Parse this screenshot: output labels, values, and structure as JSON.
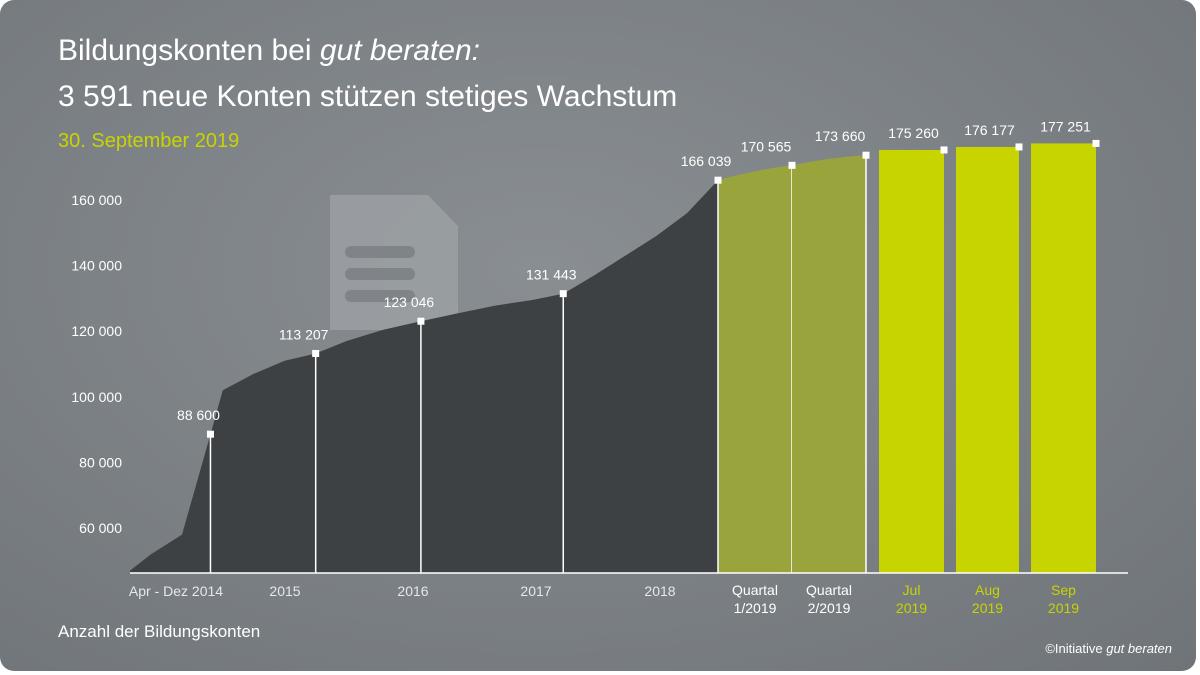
{
  "title_line1_prefix": "Bildungskonten bei ",
  "title_line1_italic": "gut beraten:",
  "title_line2": "3 591 neue Konten stützen stetiges Wachstum",
  "subtitle_date": "30. September 2019",
  "caption": "Anzahl der Bildungskonten",
  "copyright_prefix": "©Initiative ",
  "copyright_italic": "gut beraten",
  "colors": {
    "background": "#7b8084",
    "area": "#3e4143",
    "quarter_bars": "#9aa43c",
    "month_bars": "#c8d400",
    "highlight_text": "#c8d400"
  },
  "chart_data": {
    "type": "area",
    "title": "Bildungskonten bei gut beraten: 3 591 neue Konten stützen stetiges Wachstum",
    "subtitle": "30. September 2019",
    "ylabel": "Anzahl der Bildungskonten",
    "yticks": [
      "60 000",
      "80 000",
      "100 000",
      "120 000",
      "140 000",
      "160 000"
    ],
    "ytick_values": [
      60000,
      80000,
      100000,
      120000,
      140000,
      160000
    ],
    "ylim": [
      47000,
      185000
    ],
    "grid": false,
    "xticks": [
      "Apr - Dez 2014",
      "2015",
      "2016",
      "2017",
      "2018"
    ],
    "area_series": {
      "x_years": [
        2014.25,
        2014.42,
        2014.67,
        2014.9,
        2015.0,
        2015.25,
        2015.5,
        2015.75,
        2016.0,
        2016.3,
        2016.6,
        2016.9,
        2017.2,
        2017.5,
        2017.75,
        2018.0,
        2018.25,
        2018.5,
        2018.75,
        2019.0
      ],
      "values": [
        47000,
        52000,
        58000,
        88600,
        102000,
        107000,
        111000,
        113207,
        117000,
        120500,
        123046,
        125500,
        127800,
        129500,
        131443,
        137000,
        143000,
        149000,
        156000,
        166039
      ]
    },
    "point_labels": [
      {
        "label": "88 600",
        "value": 88600,
        "x_year": 2014.9
      },
      {
        "label": "113 207",
        "value": 113207,
        "x_year": 2015.75
      },
      {
        "label": "123 046",
        "value": 123046,
        "x_year": 2016.6
      },
      {
        "label": "131 443",
        "value": 131443,
        "x_year": 2017.75
      },
      {
        "label": "166 039",
        "value": 166039,
        "x_year": 2019.0
      }
    ],
    "quarter_bars": [
      {
        "category": "Quartal 1/2019",
        "line1": "Quartal",
        "line2": "1/2019",
        "value": 170565,
        "label": "170 565"
      },
      {
        "category": "Quartal 2/2019",
        "line1": "Quartal",
        "line2": "2/2019",
        "value": 173660,
        "label": "173 660"
      }
    ],
    "month_bars": [
      {
        "category": "Jul 2019",
        "line1": "Jul",
        "line2": "2019",
        "value": 175260,
        "label": "175 260"
      },
      {
        "category": "Aug 2019",
        "line1": "Aug",
        "line2": "2019",
        "value": 176177,
        "label": "176 177"
      },
      {
        "category": "Sep 2019",
        "line1": "Sep",
        "line2": "2019",
        "value": 177251,
        "label": "177 251"
      }
    ]
  }
}
